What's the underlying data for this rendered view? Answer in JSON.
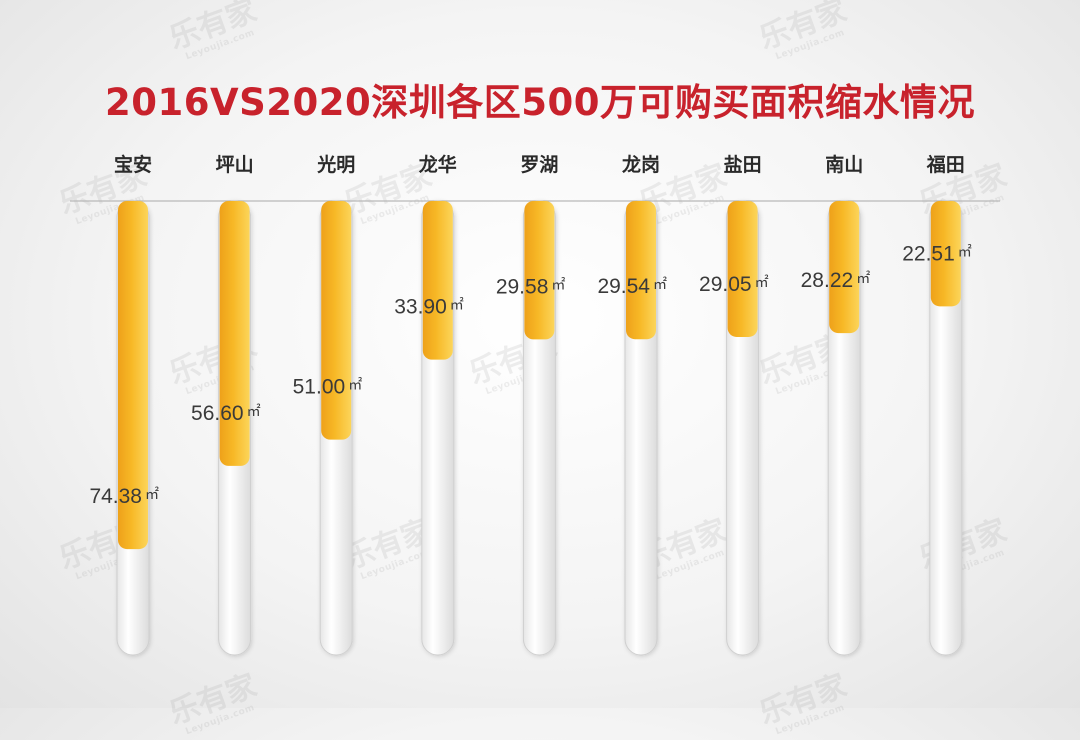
{
  "watermark": {
    "text": "乐有家",
    "subtext": "Leyoujia.com"
  },
  "chart_data": {
    "type": "bar",
    "title": "2016VS2020深圳各区500万可购买面积缩水情况",
    "categories": [
      "宝安",
      "坪山",
      "光明",
      "龙华",
      "罗湖",
      "龙岗",
      "盐田",
      "南山",
      "福田"
    ],
    "values": [
      74.38,
      56.6,
      51.0,
      33.9,
      29.58,
      29.54,
      29.05,
      28.22,
      22.51
    ],
    "value_labels": [
      "74.38",
      "56.60",
      "51.00",
      "33.90",
      "29.58",
      "29.54",
      "29.05",
      "28.22",
      "22.51"
    ],
    "unit": "㎡",
    "ylim": [
      0,
      88
    ],
    "orientation": "downward",
    "grid": false,
    "legend": "none",
    "colors": {
      "bar": "#f5b223",
      "bar_light": "#fbd150",
      "track": "#ffffff",
      "title": "#c8222c"
    }
  }
}
